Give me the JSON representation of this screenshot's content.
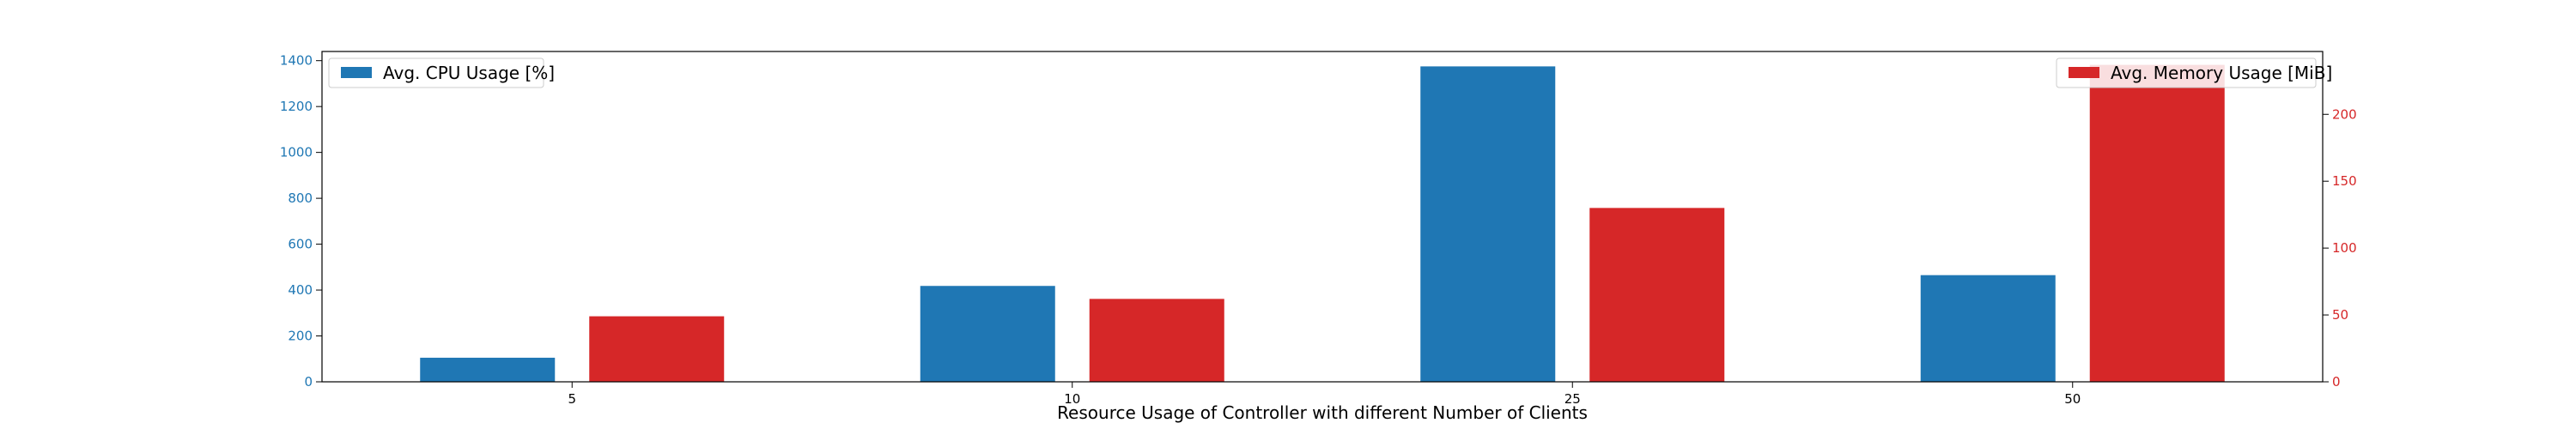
{
  "chart_data": {
    "type": "bar",
    "categories": [
      "5",
      "10",
      "25",
      "50"
    ],
    "xlabel": "Resource Usage of Controller with different Number of Clients",
    "grid": false,
    "series": [
      {
        "name": "Avg. CPU Usage [%]",
        "axis": "left",
        "color": "#1f77b4",
        "values": [
          105,
          418,
          1375,
          465
        ]
      },
      {
        "name": "Avg. Memory Usage [MiB]",
        "axis": "right",
        "color": "#d62728",
        "values": [
          49,
          62,
          130,
          237
        ]
      }
    ],
    "y_left": {
      "ylim": [
        0,
        1440
      ],
      "ticks": [
        0,
        200,
        400,
        600,
        800,
        1000,
        1200,
        1400
      ],
      "color": "#1f77b4"
    },
    "y_right": {
      "ylim": [
        0,
        247
      ],
      "ticks": [
        0,
        50,
        100,
        150,
        200
      ],
      "color": "#d62728"
    },
    "legends": [
      {
        "series": 0,
        "placement": "top-left"
      },
      {
        "series": 1,
        "placement": "top-right"
      }
    ]
  }
}
